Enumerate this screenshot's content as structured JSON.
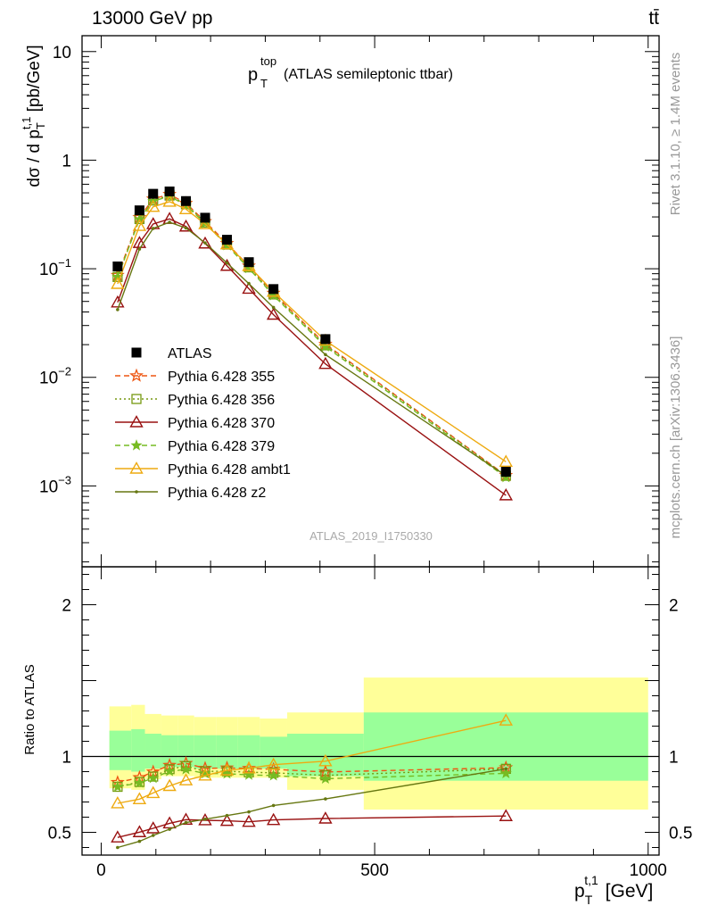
{
  "header": {
    "left": "13000 GeV pp",
    "right": "tt̄"
  },
  "side_labels": {
    "rivet": "Rivet 3.1.10, ≥ 1.4M events",
    "mcplots": "mcplots.cern.ch [arXiv:1306.3436]"
  },
  "plot_title": {
    "main": "p",
    "sup": "top",
    "sub": "T",
    "rest": " (ATLAS semileptonic ttbar)"
  },
  "analysis_id": "ATLAS_2019_I1750330",
  "colors": {
    "data": "#000000",
    "p355": "#ee5511",
    "p356": "#779911",
    "p370": "#991111",
    "p379": "#77bb22",
    "ambt1": "#eeaa11",
    "z2": "#667711",
    "band_outer": "#ffff99",
    "band_inner": "#99ff99"
  },
  "chart_data": {
    "type": "line",
    "title": "p_T^top (ATLAS semileptonic ttbar)",
    "xlabel": "p_T^{t,1} [GeV]",
    "ylabel": "dσ / d p_T^{t,1} [pb/GeV]",
    "ratio_ylabel": "Ratio to ATLAS",
    "xlim": [
      -35,
      1020
    ],
    "ylim": [
      0.00018,
      14
    ],
    "ratio_ylim": [
      0.35,
      2.25
    ],
    "yscale": "log",
    "x": [
      30,
      70,
      95,
      125,
      155,
      190,
      230,
      270,
      315,
      410,
      740
    ],
    "x_ticks": [
      0,
      500,
      1000
    ],
    "y_ticks": [
      {
        "value": 0.001,
        "base": "10",
        "exp": "−3"
      },
      {
        "value": 0.01,
        "base": "10",
        "exp": "−2"
      },
      {
        "value": 0.1,
        "base": "10",
        "exp": "−1"
      },
      {
        "value": 1,
        "base": "1",
        "exp": ""
      },
      {
        "value": 10,
        "base": "10",
        "exp": ""
      }
    ],
    "ratio_y_ticks": [
      0.5,
      1,
      1.5,
      2
    ],
    "ratio_tick_labels": [
      "0.5",
      "1",
      "2"
    ],
    "ratio_labeled_ticks": [
      0.5,
      1,
      2
    ],
    "x_tick_labels": [
      "0",
      "500",
      "1000"
    ],
    "data": {
      "name": "ATLAS",
      "values": [
        0.105,
        0.345,
        0.49,
        0.515,
        0.42,
        0.295,
        0.185,
        0.115,
        0.065,
        0.0225,
        0.00135
      ]
    },
    "series": [
      {
        "name": "Pythia 6.428 355",
        "key": "p355",
        "marker": "star-open",
        "dash": "6,4",
        "values": [
          0.087,
          0.297,
          0.44,
          0.485,
          0.401,
          0.272,
          0.171,
          0.106,
          0.0595,
          0.0202,
          0.00125
        ]
      },
      {
        "name": "Pythia 6.428 356",
        "key": "p356",
        "marker": "square-open",
        "dash": "2,3",
        "values": [
          0.084,
          0.287,
          0.425,
          0.472,
          0.393,
          0.266,
          0.167,
          0.103,
          0.058,
          0.0197,
          0.00124
        ]
      },
      {
        "name": "Pythia 6.428 370",
        "key": "p370",
        "marker": "triangle-open",
        "dash": "",
        "values": [
          0.049,
          0.173,
          0.258,
          0.288,
          0.245,
          0.171,
          0.1065,
          0.0655,
          0.0378,
          0.0133,
          0.00082
        ]
      },
      {
        "name": "Pythia 6.428 379",
        "key": "p379",
        "marker": "star-filled",
        "dash": "6,4",
        "values": [
          0.084,
          0.285,
          0.42,
          0.465,
          0.384,
          0.262,
          0.164,
          0.101,
          0.0568,
          0.0192,
          0.0012
        ]
      },
      {
        "name": "Pythia 6.428 ambt1",
        "key": "ambt1",
        "marker": "triangle-open",
        "dash": "",
        "values": [
          0.0726,
          0.248,
          0.372,
          0.415,
          0.354,
          0.258,
          0.168,
          0.106,
          0.0615,
          0.0218,
          0.00167
        ]
      },
      {
        "name": "Pythia 6.428 z2",
        "key": "z2",
        "marker": "dot",
        "dash": "",
        "values": [
          0.042,
          0.152,
          0.235,
          0.268,
          0.237,
          0.173,
          0.113,
          0.073,
          0.044,
          0.0162,
          0.00124
        ]
      }
    ],
    "ratio_band_edges": [
      15,
      55,
      80,
      110,
      140,
      170,
      210,
      250,
      290,
      340,
      480,
      1000
    ],
    "ratio_band_inner": [
      [
        0.91,
        1.17
      ],
      [
        0.9,
        1.18
      ],
      [
        0.92,
        1.15
      ],
      [
        0.93,
        1.14
      ],
      [
        0.93,
        1.14
      ],
      [
        0.92,
        1.14
      ],
      [
        0.92,
        1.14
      ],
      [
        0.92,
        1.14
      ],
      [
        0.92,
        1.13
      ],
      [
        0.87,
        1.15
      ],
      [
        0.84,
        1.29
      ]
    ],
    "ratio_band_outer": [
      [
        0.79,
        1.33
      ],
      [
        0.78,
        1.34
      ],
      [
        0.85,
        1.28
      ],
      [
        0.87,
        1.27
      ],
      [
        0.87,
        1.27
      ],
      [
        0.86,
        1.26
      ],
      [
        0.86,
        1.26
      ],
      [
        0.86,
        1.26
      ],
      [
        0.86,
        1.25
      ],
      [
        0.78,
        1.29
      ],
      [
        0.65,
        1.52
      ]
    ]
  }
}
